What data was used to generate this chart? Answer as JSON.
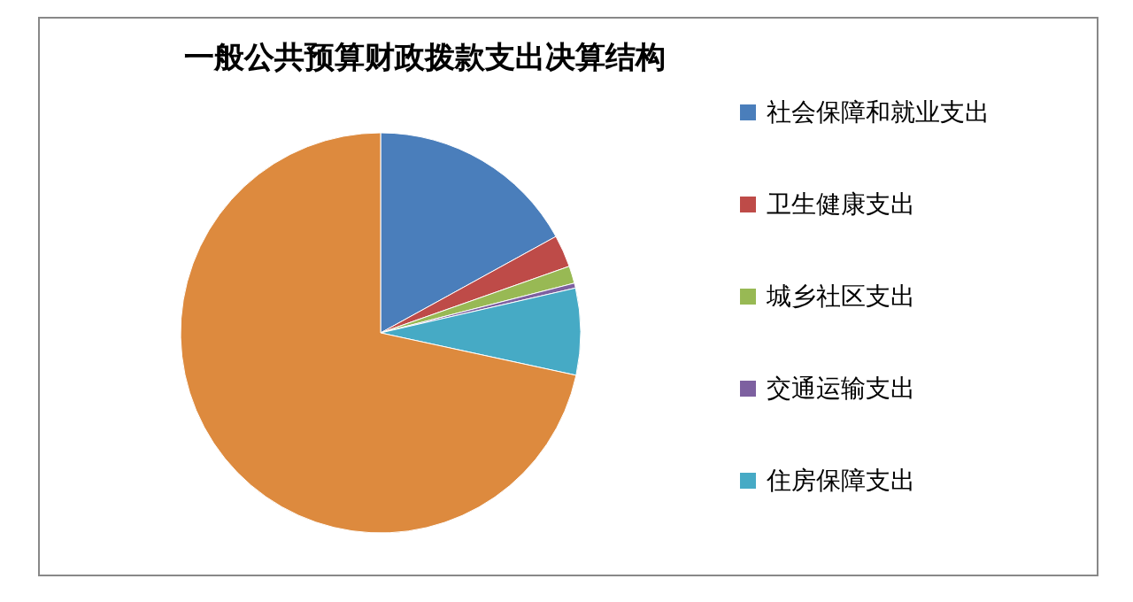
{
  "chart_data": {
    "type": "pie",
    "title": "一般公共预算财政拨款支出决算结构",
    "categories": [
      "社会保障和就业支出",
      "卫生健康支出",
      "城乡社区支出",
      "交通运输支出",
      "住房保障支出",
      null
    ],
    "values": [
      17,
      2.6,
      1.4,
      0.4,
      7,
      71.6
    ],
    "colors": [
      "#4a7ebb",
      "#be4b48",
      "#98b954",
      "#7d60a0",
      "#46aac5",
      "#dd8a3e"
    ],
    "legend": "right"
  }
}
